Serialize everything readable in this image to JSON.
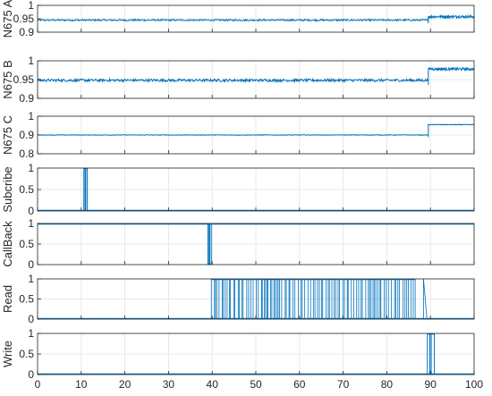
{
  "line_color": "#0072BD",
  "chart_data": [
    {
      "type": "line",
      "ylabel": "N675 A",
      "ylim": [
        0.9,
        1.0
      ],
      "yticks": [
        0.9,
        0.95,
        1
      ],
      "ytick_labels": [
        "0.9",
        "0.95",
        "1"
      ],
      "xlim": [
        0,
        100
      ],
      "grid": true,
      "signal": {
        "kind": "step_noisy",
        "level_before": 0.945,
        "level_after": 0.958,
        "step_x": 89.5,
        "band_before": 0.006,
        "band_after": 0.009
      }
    },
    {
      "type": "line",
      "ylabel": "N675 B",
      "ylim": [
        0.9,
        1.0
      ],
      "yticks": [
        0.9,
        0.95,
        1
      ],
      "ytick_labels": [
        "0.9",
        "0.95",
        "1"
      ],
      "xlim": [
        0,
        100
      ],
      "grid": true,
      "signal": {
        "kind": "step_noisy",
        "level_before": 0.948,
        "level_after": 0.978,
        "step_x": 89.5,
        "band_before": 0.007,
        "band_after": 0.007
      }
    },
    {
      "type": "line",
      "ylabel": "N675 C",
      "ylim": [
        0.8,
        1.0
      ],
      "yticks": [
        0.8,
        0.9,
        1
      ],
      "ytick_labels": [
        "0.8",
        "0.9",
        "1"
      ],
      "xlim": [
        0,
        100
      ],
      "grid": true,
      "signal": {
        "kind": "step_noisy",
        "level_before": 0.9,
        "level_after": 0.955,
        "step_x": 89.5,
        "band_before": 0.003,
        "band_after": 0.003
      }
    },
    {
      "type": "line",
      "ylabel": "Subcribe",
      "ylim": [
        0,
        1
      ],
      "yticks": [
        0,
        0.5,
        1
      ],
      "ytick_labels": [
        "0",
        "0.5",
        "1"
      ],
      "xlim": [
        0,
        100
      ],
      "grid": true,
      "signal": {
        "kind": "binary",
        "base": 0,
        "segments": [
          [
            10.6,
            11.4
          ]
        ]
      }
    },
    {
      "type": "line",
      "ylabel": "CallBack",
      "ylim": [
        0,
        1
      ],
      "yticks": [
        0,
        0.5,
        1
      ],
      "ytick_labels": [
        "0",
        "0.5",
        "1"
      ],
      "xlim": [
        0,
        100
      ],
      "grid": true,
      "signal": {
        "kind": "binary",
        "base": 1,
        "segments": [
          [
            39.0,
            39.8
          ]
        ]
      }
    },
    {
      "type": "line",
      "ylabel": "Read",
      "ylim": [
        0,
        1
      ],
      "yticks": [
        0,
        0.5,
        1
      ],
      "ytick_labels": [
        "0",
        "0.5",
        "1"
      ],
      "xlim": [
        0,
        100
      ],
      "grid": true,
      "signal": {
        "kind": "burst",
        "base": 0,
        "start": 39.8,
        "end": 86.5,
        "tail": [
          88.4,
          89.2
        ]
      }
    },
    {
      "type": "line",
      "ylabel": "Write",
      "ylim": [
        0,
        1
      ],
      "yticks": [
        0,
        0.5,
        1
      ],
      "ytick_labels": [
        "0",
        "0.5",
        "1"
      ],
      "xlim": [
        0,
        100
      ],
      "xticks": [
        0,
        10,
        20,
        30,
        40,
        50,
        60,
        70,
        80,
        90,
        100
      ],
      "xtick_labels": [
        "0",
        "10",
        "20",
        "30",
        "40",
        "50",
        "60",
        "70",
        "80",
        "90",
        "100"
      ],
      "grid": true,
      "signal": {
        "kind": "binary",
        "base": 0,
        "segments": [
          [
            89.3,
            90.9
          ]
        ]
      }
    }
  ]
}
